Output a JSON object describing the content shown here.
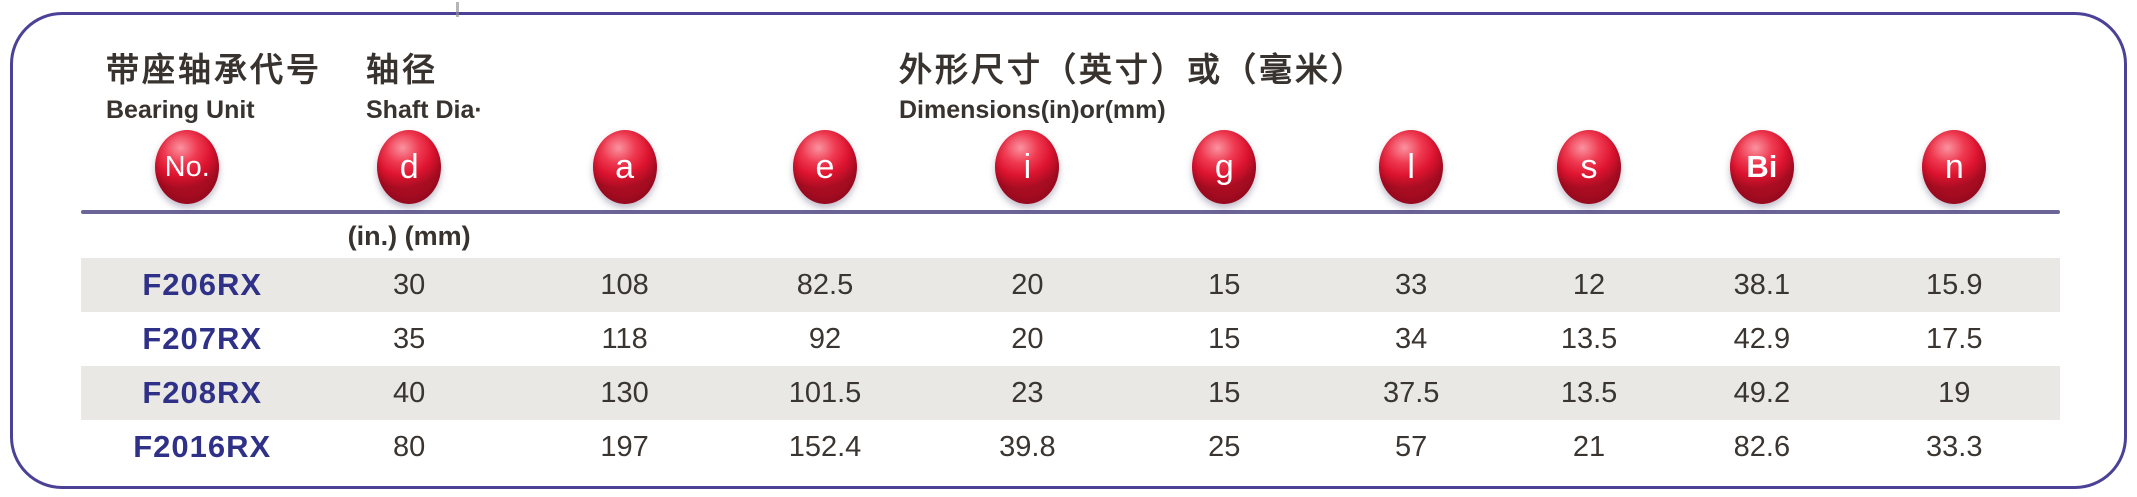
{
  "header": {
    "bearing_unit_zh": "带座轴承代号",
    "bearing_unit_en": "Bearing Unit",
    "shaft_dia_zh": "轴径",
    "shaft_dia_en": "Shaft Dia·",
    "dimensions_zh": "外形尺寸（英寸）或（毫米）",
    "dimensions_en": "Dimensions(in)or(mm)"
  },
  "badges": [
    "No.",
    "d",
    "a",
    "e",
    "i",
    "g",
    "l",
    "s",
    "Bi",
    "n"
  ],
  "subheader": {
    "unit_note": "(in.) (mm)"
  },
  "table": {
    "rows": [
      {
        "name": "F206RX",
        "values": [
          "30",
          "108",
          "82.5",
          "20",
          "15",
          "33",
          "12",
          "38.1",
          "15.9"
        ]
      },
      {
        "name": "F207RX",
        "values": [
          "35",
          "118",
          "92",
          "20",
          "15",
          "34",
          "13.5",
          "42.9",
          "17.5"
        ]
      },
      {
        "name": "F208RX",
        "values": [
          "40",
          "130",
          "101.5",
          "23",
          "15",
          "37.5",
          "13.5",
          "49.2",
          "19"
        ]
      },
      {
        "name": "F2016RX",
        "values": [
          "80",
          "197",
          "152.4",
          "39.8",
          "25",
          "57",
          "21",
          "82.6",
          "33.3"
        ]
      }
    ]
  },
  "colors": {
    "panel_border": "#4b4297",
    "divider_line": "#6b6496",
    "badge_red": "#de1430",
    "badge_highlight": "#fa93a0",
    "badge_shadow": "#a80d22",
    "model_name_navy": "#2e3187",
    "row_stripe_gray": "#e9e8e5",
    "text_dark": "#38332f",
    "background": "#ffffff"
  }
}
